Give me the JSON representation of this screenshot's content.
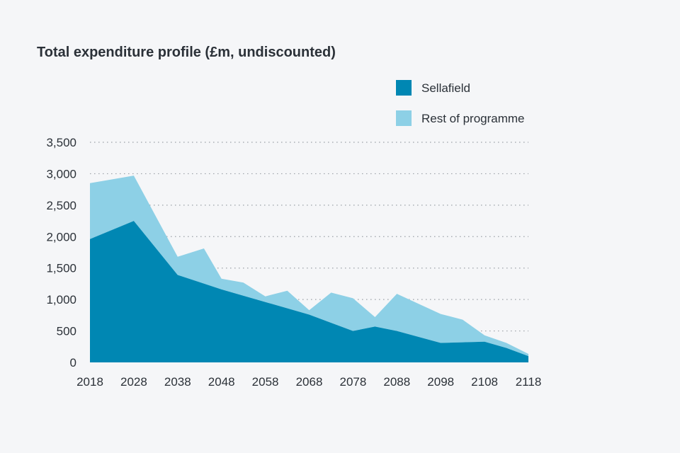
{
  "chart_data": {
    "type": "area",
    "stacked": true,
    "title": "Total expenditure profile (£m, undiscounted)",
    "xlabel": "",
    "ylabel": "",
    "x_ticks": [
      "2018",
      "2028",
      "2038",
      "2048",
      "2058",
      "2068",
      "2078",
      "2088",
      "2098",
      "2108",
      "2118"
    ],
    "y_ticks": [
      "0",
      "500",
      "1,000",
      "1,500",
      "2,000",
      "2,500",
      "3,000",
      "3,500"
    ],
    "xlim": [
      2018,
      2118
    ],
    "ylim": [
      0,
      3500
    ],
    "grid": true,
    "legend_position": "top-right",
    "series": [
      {
        "name": "Sellafield",
        "color": "#0087b3",
        "points": [
          [
            2018,
            1960
          ],
          [
            2028,
            2250
          ],
          [
            2038,
            1390
          ],
          [
            2048,
            1160
          ],
          [
            2058,
            960
          ],
          [
            2068,
            760
          ],
          [
            2078,
            500
          ],
          [
            2083,
            570
          ],
          [
            2088,
            500
          ],
          [
            2098,
            310
          ],
          [
            2103,
            320
          ],
          [
            2108,
            330
          ],
          [
            2113,
            230
          ],
          [
            2118,
            100
          ]
        ]
      },
      {
        "name": "Rest of programme",
        "color": "#8dd0e6",
        "points": [
          [
            2018,
            890
          ],
          [
            2028,
            720
          ],
          [
            2038,
            290
          ],
          [
            2044,
            560
          ],
          [
            2048,
            170
          ],
          [
            2053,
            210
          ],
          [
            2058,
            90
          ],
          [
            2063,
            280
          ],
          [
            2068,
            70
          ],
          [
            2073,
            480
          ],
          [
            2078,
            520
          ],
          [
            2083,
            150
          ],
          [
            2088,
            590
          ],
          [
            2098,
            460
          ],
          [
            2103,
            360
          ],
          [
            2108,
            100
          ],
          [
            2113,
            80
          ],
          [
            2118,
            35
          ]
        ]
      }
    ]
  }
}
